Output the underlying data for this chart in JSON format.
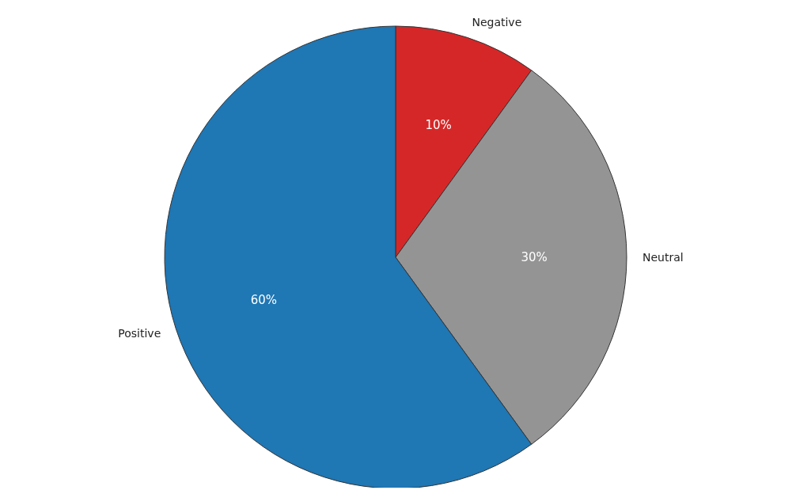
{
  "chart_data": {
    "type": "pie",
    "categories": [
      "Negative",
      "Neutral",
      "Positive"
    ],
    "values": [
      10,
      30,
      60
    ],
    "colors": [
      "#d62728",
      "#949494",
      "#1f77b4"
    ],
    "value_labels": [
      "10%",
      "30%",
      "60%"
    ],
    "legend": false
  }
}
